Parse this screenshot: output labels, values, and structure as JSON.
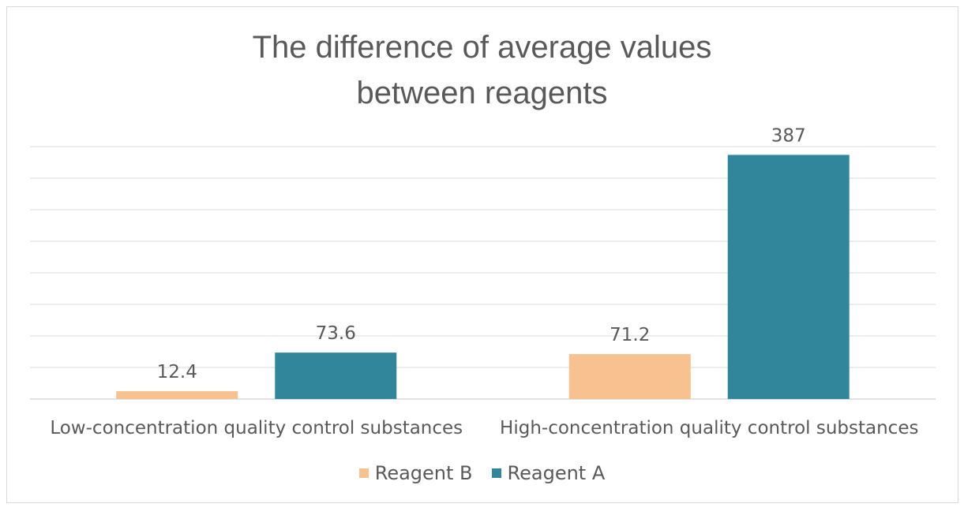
{
  "chart_data": {
    "type": "bar",
    "title_lines": [
      "The difference of average values",
      "between reagents"
    ],
    "categories": [
      "Low-concentration quality control substances",
      "High-concentration quality control substances"
    ],
    "series": [
      {
        "name": "Reagent B",
        "values": [
          12.4,
          71.2
        ],
        "labels": [
          "12.4",
          "71.2"
        ],
        "color": "#f8c190"
      },
      {
        "name": "Reagent A",
        "values": [
          73.6,
          387
        ],
        "labels": [
          "73.6",
          "387"
        ],
        "color": "#31869b"
      }
    ],
    "ylim": [
      0,
      400
    ],
    "grid": true,
    "legend_position": "bottom",
    "colors": {
      "grid": "#d9d9d9",
      "text": "#595959"
    }
  }
}
